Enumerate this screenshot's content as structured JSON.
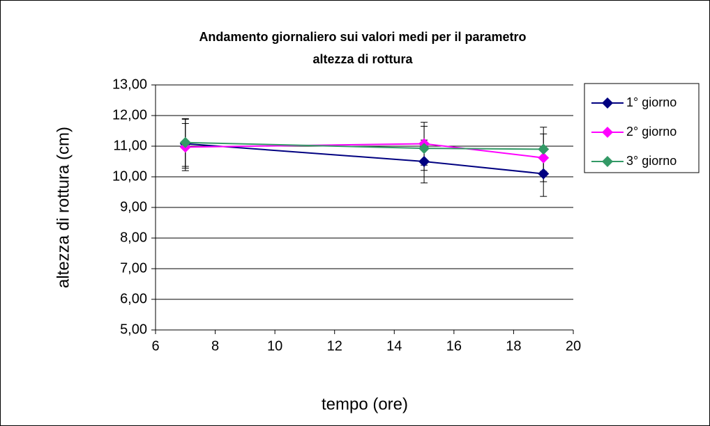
{
  "chart_data": {
    "type": "line",
    "title": [
      "Andamento giornaliero sui valori medi per il parametro",
      "altezza di rottura"
    ],
    "x_label": "tempo (ore)",
    "y_label": "altezza di rottura (cm)",
    "x": [
      7,
      15,
      19
    ],
    "series": [
      {
        "name": "1° giorno",
        "color": "#000080",
        "values": [
          11.08,
          10.5,
          10.1
        ],
        "errors": [
          0.8,
          0.7,
          0.74
        ]
      },
      {
        "name": "2° giorno",
        "color": "#ff00ff",
        "values": [
          10.97,
          11.08,
          10.62
        ],
        "errors": [
          0.77,
          0.7,
          0.78
        ]
      },
      {
        "name": "3° giorno",
        "color": "#339966",
        "values": [
          11.12,
          10.93,
          10.9
        ],
        "errors": [
          0.78,
          0.72,
          0.72
        ]
      }
    ],
    "xlim": [
      6,
      20
    ],
    "xticks": [
      6,
      8,
      10,
      12,
      14,
      16,
      18,
      20
    ],
    "ylim": [
      5,
      13
    ],
    "yticks": [
      {
        "value": 5,
        "label": "5,00"
      },
      {
        "value": 6,
        "label": "6,00"
      },
      {
        "value": 7,
        "label": "7,00"
      },
      {
        "value": 8,
        "label": "8,00"
      },
      {
        "value": 9,
        "label": "9,00"
      },
      {
        "value": 10,
        "label": "10,00"
      },
      {
        "value": 11,
        "label": "11,00"
      },
      {
        "value": 12,
        "label": "12,00"
      },
      {
        "value": 13,
        "label": "13,00"
      }
    ],
    "grid": true,
    "legend": "right"
  }
}
